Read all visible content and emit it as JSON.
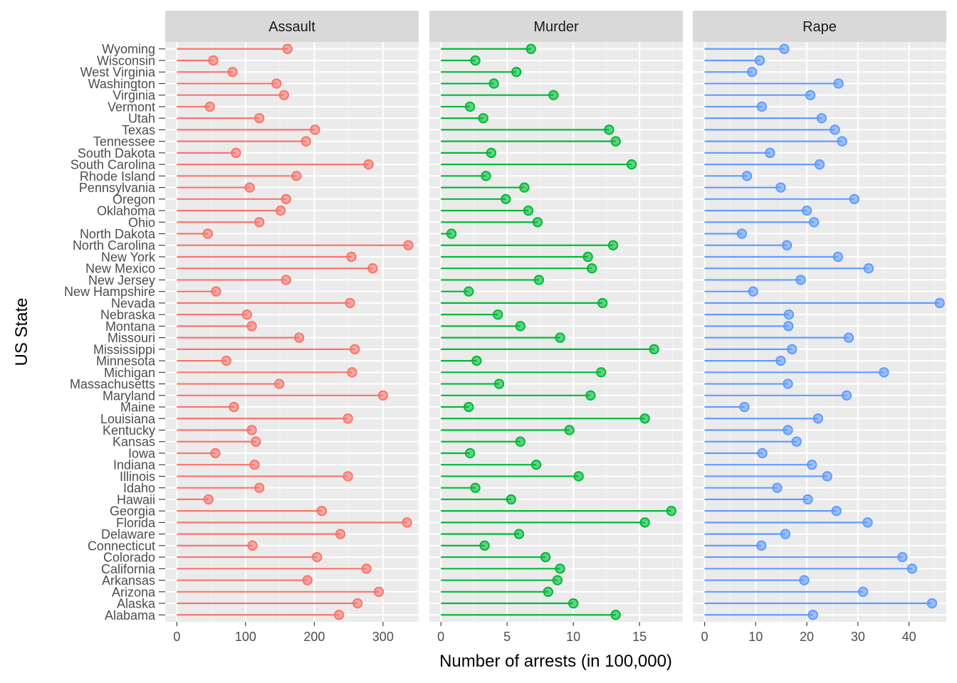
{
  "chart_data": {
    "type": "lollipop",
    "facets": [
      "Assault",
      "Murder",
      "Rape"
    ],
    "xlabel": "Number of arrests (in 100,000)",
    "ylabel": "US State",
    "states": [
      "Alabama",
      "Alaska",
      "Arizona",
      "Arkansas",
      "California",
      "Colorado",
      "Connecticut",
      "Delaware",
      "Florida",
      "Georgia",
      "Hawaii",
      "Idaho",
      "Illinois",
      "Indiana",
      "Iowa",
      "Kansas",
      "Kentucky",
      "Louisiana",
      "Maine",
      "Maryland",
      "Massachusetts",
      "Michigan",
      "Minnesota",
      "Mississippi",
      "Missouri",
      "Montana",
      "Nebraska",
      "Nevada",
      "New Hampshire",
      "New Jersey",
      "New Mexico",
      "New York",
      "North Carolina",
      "North Dakota",
      "Ohio",
      "Oklahoma",
      "Oregon",
      "Pennsylvania",
      "Rhode Island",
      "South Carolina",
      "South Dakota",
      "Tennessee",
      "Texas",
      "Utah",
      "Vermont",
      "Virginia",
      "Washington",
      "West Virginia",
      "Wisconsin",
      "Wyoming"
    ],
    "panels": [
      {
        "name": "Assault",
        "color": "#F8766D",
        "xlim": [
          -17,
          352
        ],
        "ticks": [
          0,
          100,
          200,
          300
        ],
        "values": [
          236,
          263,
          294,
          190,
          276,
          204,
          110,
          238,
          335,
          211,
          46,
          120,
          249,
          113,
          56,
          115,
          109,
          249,
          83,
          300,
          149,
          255,
          72,
          259,
          178,
          109,
          102,
          252,
          57,
          159,
          285,
          254,
          337,
          45,
          120,
          151,
          159,
          106,
          174,
          279,
          86,
          188,
          201,
          120,
          48,
          156,
          145,
          81,
          53,
          161
        ]
      },
      {
        "name": "Murder",
        "color": "#00BA38",
        "xlim": [
          -0.87,
          18.27
        ],
        "ticks": [
          0,
          5,
          10,
          15
        ],
        "values": [
          13.2,
          10.0,
          8.1,
          8.8,
          9.0,
          7.9,
          3.3,
          5.9,
          15.4,
          17.4,
          5.3,
          2.6,
          10.4,
          7.2,
          2.2,
          6.0,
          9.7,
          15.4,
          2.1,
          11.3,
          4.4,
          12.1,
          2.7,
          16.1,
          9.0,
          6.0,
          4.3,
          12.2,
          2.1,
          7.4,
          11.4,
          11.1,
          13.0,
          0.8,
          7.3,
          6.6,
          4.9,
          6.3,
          3.4,
          14.4,
          3.8,
          13.2,
          12.7,
          3.2,
          2.2,
          8.5,
          4.0,
          5.7,
          2.6,
          6.8
        ]
      },
      {
        "name": "Rape",
        "color": "#619CFF",
        "xlim": [
          -2.3,
          47.3
        ],
        "ticks": [
          0,
          10,
          20,
          30,
          40
        ],
        "values": [
          21.2,
          44.5,
          31.0,
          19.5,
          40.6,
          38.7,
          11.1,
          15.8,
          31.9,
          25.8,
          20.2,
          14.2,
          24.0,
          21.0,
          11.3,
          18.0,
          16.3,
          22.2,
          7.8,
          27.8,
          16.3,
          35.1,
          14.9,
          17.1,
          28.2,
          16.4,
          16.5,
          46.0,
          9.5,
          18.8,
          32.1,
          26.1,
          16.1,
          7.3,
          21.4,
          20.0,
          29.3,
          14.9,
          8.3,
          22.5,
          12.8,
          26.9,
          25.5,
          22.9,
          11.2,
          20.7,
          26.2,
          9.3,
          10.8,
          15.6
        ]
      }
    ]
  }
}
